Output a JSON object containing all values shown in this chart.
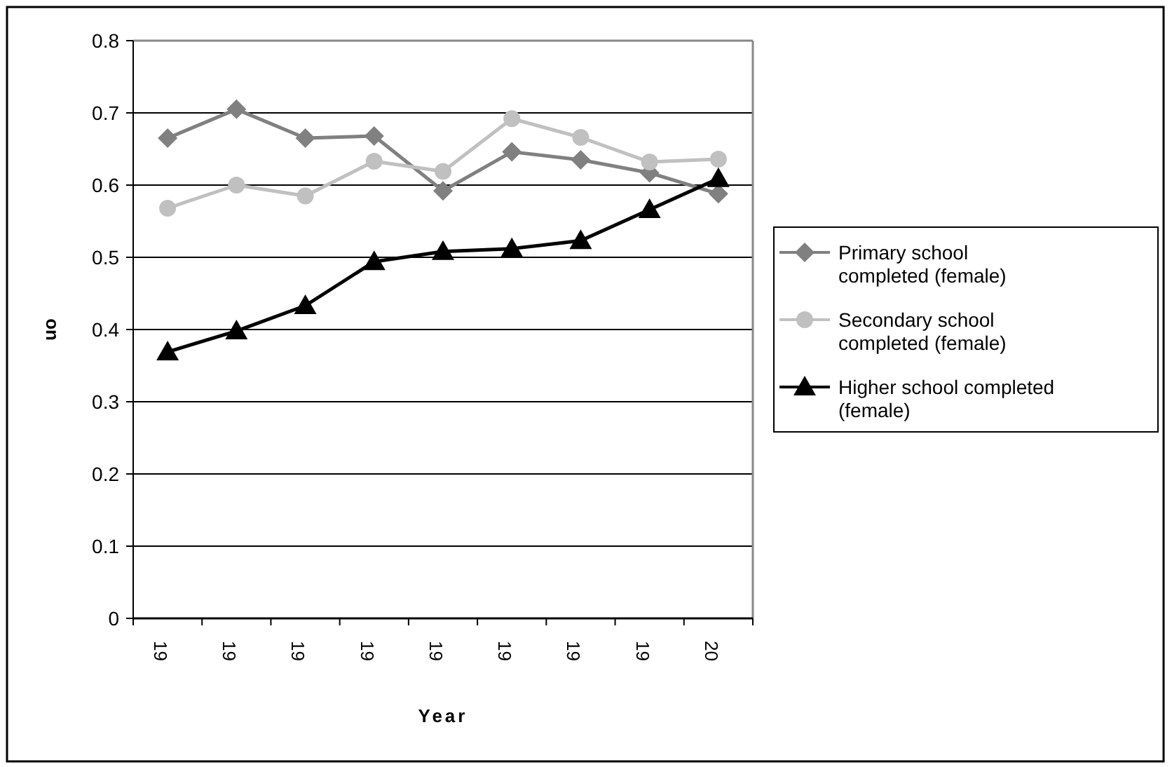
{
  "chart_data": {
    "type": "line",
    "xlabel": "Year",
    "ylabel": "on",
    "categories": [
      "19",
      "19",
      "19",
      "19",
      "19",
      "19",
      "19",
      "19",
      "20"
    ],
    "series": [
      {
        "name": "Primary school completed (female)",
        "color": "#808080",
        "marker": "diamond",
        "values": [
          0.665,
          0.705,
          0.665,
          0.668,
          0.592,
          0.646,
          0.635,
          0.617,
          0.588
        ]
      },
      {
        "name": "Secondary school completed (female)",
        "color": "#c0c0c0",
        "marker": "circle",
        "values": [
          0.568,
          0.6,
          0.585,
          0.633,
          0.619,
          0.692,
          0.666,
          0.632,
          0.636
        ]
      },
      {
        "name": "Higher school completed (female)",
        "color": "#000000",
        "marker": "triangle",
        "values": [
          0.369,
          0.398,
          0.433,
          0.494,
          0.508,
          0.512,
          0.523,
          0.566,
          0.609
        ]
      }
    ],
    "ylim": [
      0,
      0.8
    ],
    "yticks": [
      0,
      0.1,
      0.2,
      0.3,
      0.4,
      0.5,
      0.6,
      0.7,
      0.8
    ],
    "grid": "y",
    "legend": "right"
  }
}
